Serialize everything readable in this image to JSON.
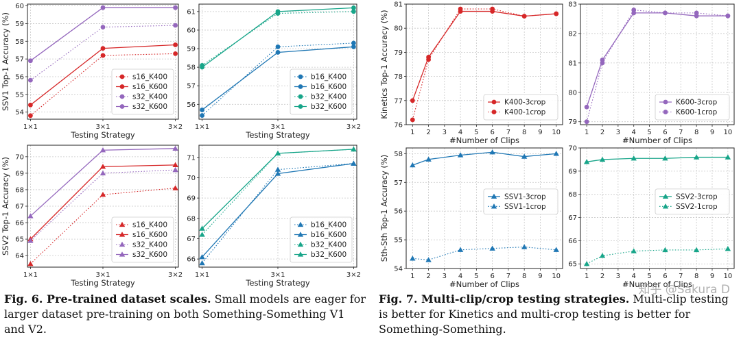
{
  "figure6": {
    "title": "Fig. 6. Pre-trained dataset scales.",
    "text": "Small models are eager for larger dataset pre-training on both Something-Something V1 and V2."
  },
  "figure7": {
    "title": "Fig. 7. Multi-clip/crop testing strategies.",
    "text": "Multi-clip testing is better for Kinetics and multi-crop testing is better for Something-Something."
  },
  "watermark": "知乎 @Sakura D",
  "chart_data": [
    {
      "id": "c1",
      "type": "line",
      "xlabel": "Testing Strategy",
      "ylabel": "SSV1 Top-1 Accuracy (%)",
      "categories": [
        "1×1",
        "3×1",
        "3×2"
      ],
      "ylim": [
        53.6,
        60.1
      ],
      "yticks": [
        54,
        55,
        56,
        57,
        58,
        59,
        60
      ],
      "ytick_decimals": 0,
      "legend": "bottom-right",
      "series": [
        {
          "name": "s16_K400",
          "values": [
            53.8,
            57.2,
            57.3
          ],
          "color": "#d62728",
          "style": "dotted",
          "marker": "circle"
        },
        {
          "name": "s16_K600",
          "values": [
            54.4,
            57.6,
            57.8
          ],
          "color": "#d62728",
          "style": "solid",
          "marker": "circle"
        },
        {
          "name": "s32_K400",
          "values": [
            55.8,
            58.8,
            58.9
          ],
          "color": "#9467bd",
          "style": "dotted",
          "marker": "circle"
        },
        {
          "name": "s32_K600",
          "values": [
            56.9,
            59.9,
            59.9
          ],
          "color": "#9467bd",
          "style": "solid",
          "marker": "circle"
        }
      ]
    },
    {
      "id": "c2",
      "type": "line",
      "xlabel": "Testing Strategy",
      "ylabel": "",
      "categories": [
        "1×1",
        "3×1",
        "3×2"
      ],
      "ylim": [
        55.2,
        61.4
      ],
      "yticks": [
        55,
        56,
        57,
        58,
        59,
        60,
        61
      ],
      "ytick_decimals": 0,
      "legend": "bottom-right",
      "series": [
        {
          "name": "b16_K400",
          "values": [
            55.4,
            59.1,
            59.3
          ],
          "color": "#1f77b4",
          "style": "dotted",
          "marker": "circle"
        },
        {
          "name": "b16_K600",
          "values": [
            55.7,
            58.8,
            59.1
          ],
          "color": "#1f77b4",
          "style": "solid",
          "marker": "circle"
        },
        {
          "name": "b32_K400",
          "values": [
            58.1,
            60.9,
            61.0
          ],
          "color": "#17a589",
          "style": "dotted",
          "marker": "circle"
        },
        {
          "name": "b32_K600",
          "values": [
            58.0,
            61.0,
            61.2
          ],
          "color": "#17a589",
          "style": "solid",
          "marker": "circle"
        }
      ]
    },
    {
      "id": "c3",
      "type": "line",
      "xlabel": "Testing Strategy",
      "ylabel": "SSV2 Top-1 Accuracy (%)",
      "categories": [
        "1×1",
        "3×1",
        "3×2"
      ],
      "ylim": [
        63.3,
        70.7
      ],
      "yticks": [
        64,
        65,
        66,
        67,
        68,
        69,
        70
      ],
      "ytick_decimals": 0,
      "legend": "bottom-right",
      "series": [
        {
          "name": "s16_K400",
          "values": [
            63.5,
            67.7,
            68.1
          ],
          "color": "#d62728",
          "style": "dotted",
          "marker": "triangle"
        },
        {
          "name": "s16_K600",
          "values": [
            65.0,
            69.4,
            69.5
          ],
          "color": "#d62728",
          "style": "solid",
          "marker": "triangle"
        },
        {
          "name": "s32_K400",
          "values": [
            64.9,
            69.0,
            69.2
          ],
          "color": "#9467bd",
          "style": "dotted",
          "marker": "triangle"
        },
        {
          "name": "s32_K600",
          "values": [
            66.4,
            70.4,
            70.5
          ],
          "color": "#9467bd",
          "style": "solid",
          "marker": "triangle"
        }
      ]
    },
    {
      "id": "c4",
      "type": "line",
      "xlabel": "Testing Strategy",
      "ylabel": "",
      "categories": [
        "1×1",
        "3×1",
        "3×2"
      ],
      "ylim": [
        65.6,
        71.6
      ],
      "yticks": [
        66,
        67,
        68,
        69,
        70,
        71
      ],
      "ytick_decimals": 0,
      "legend": "bottom-right",
      "series": [
        {
          "name": "b16_K400",
          "values": [
            65.8,
            70.4,
            70.7
          ],
          "color": "#1f77b4",
          "style": "dotted",
          "marker": "triangle"
        },
        {
          "name": "b16_K600",
          "values": [
            66.1,
            70.2,
            70.7
          ],
          "color": "#1f77b4",
          "style": "solid",
          "marker": "triangle"
        },
        {
          "name": "b32_K400",
          "values": [
            67.2,
            71.2,
            71.4
          ],
          "color": "#17a589",
          "style": "dotted",
          "marker": "triangle"
        },
        {
          "name": "b32_K600",
          "values": [
            67.5,
            71.2,
            71.4
          ],
          "color": "#17a589",
          "style": "solid",
          "marker": "triangle"
        }
      ]
    },
    {
      "id": "c5",
      "type": "line",
      "xlabel": "#Number of Clips",
      "ylabel": "Kinetics Top-1 Accuracy (%)",
      "x": [
        1,
        2,
        4,
        6,
        8,
        10
      ],
      "xticks": [
        1,
        2,
        3,
        4,
        5,
        6,
        7,
        8,
        9,
        10
      ],
      "xlim": [
        0.6,
        10.4
      ],
      "ylim": [
        76.0,
        81.0
      ],
      "yticks": [
        76,
        77,
        78,
        79,
        80,
        81
      ],
      "ytick_decimals": 0,
      "legend": "bottom-right",
      "series": [
        {
          "name": "K400-3crop",
          "values": [
            77.0,
            78.8,
            80.7,
            80.7,
            80.5,
            80.6
          ],
          "color": "#d62728",
          "style": "solid",
          "marker": "circle"
        },
        {
          "name": "K400-1crop",
          "values": [
            76.2,
            78.7,
            80.8,
            80.8,
            80.5,
            80.6
          ],
          "color": "#d62728",
          "style": "dotted",
          "marker": "circle"
        }
      ]
    },
    {
      "id": "c6",
      "type": "line",
      "xlabel": "#Number of Clips",
      "ylabel": "",
      "x": [
        1,
        2,
        4,
        6,
        8,
        10
      ],
      "xticks": [
        1,
        2,
        3,
        4,
        5,
        6,
        7,
        8,
        9,
        10
      ],
      "xlim": [
        0.6,
        10.4
      ],
      "ylim": [
        78.9,
        83.0
      ],
      "yticks": [
        79,
        80,
        81,
        82,
        83
      ],
      "ytick_decimals": 0,
      "legend": "bottom-right",
      "series": [
        {
          "name": "K600-3crop",
          "values": [
            79.5,
            81.1,
            82.7,
            82.7,
            82.6,
            82.6
          ],
          "color": "#9467bd",
          "style": "solid",
          "marker": "circle"
        },
        {
          "name": "K600-1crop",
          "values": [
            79.0,
            81.0,
            82.8,
            82.7,
            82.7,
            82.6
          ],
          "color": "#9467bd",
          "style": "dotted",
          "marker": "circle"
        }
      ]
    },
    {
      "id": "c7",
      "type": "line",
      "xlabel": "#Number of Clips",
      "ylabel": "Sth-Sth Top-1 Accuracy (%)",
      "x": [
        1,
        2,
        4,
        6,
        8,
        10
      ],
      "xticks": [
        1,
        2,
        3,
        4,
        5,
        6,
        7,
        8,
        9,
        10
      ],
      "xlim": [
        0.6,
        10.4
      ],
      "ylim": [
        54.0,
        58.2
      ],
      "yticks": [
        54,
        55,
        56,
        57,
        58
      ],
      "ytick_decimals": 0,
      "legend": "center-right",
      "series": [
        {
          "name": "SSV1-3crop",
          "values": [
            57.6,
            57.8,
            57.95,
            58.05,
            57.9,
            58.0
          ],
          "color": "#1f77b4",
          "style": "solid",
          "marker": "triangle"
        },
        {
          "name": "SSV1-1crop",
          "values": [
            54.35,
            54.3,
            54.65,
            54.7,
            54.75,
            54.65
          ],
          "color": "#1f77b4",
          "style": "dotted",
          "marker": "triangle"
        }
      ]
    },
    {
      "id": "c8",
      "type": "line",
      "xlabel": "#Number of Clips",
      "ylabel": "",
      "x": [
        1,
        2,
        4,
        6,
        8,
        10
      ],
      "xticks": [
        1,
        2,
        3,
        4,
        5,
        6,
        7,
        8,
        9,
        10
      ],
      "xlim": [
        0.6,
        10.4
      ],
      "ylim": [
        64.8,
        70.0
      ],
      "yticks": [
        65,
        66,
        67,
        68,
        69,
        70
      ],
      "ytick_decimals": 0,
      "legend": "center-right",
      "series": [
        {
          "name": "SSV2-3crop",
          "values": [
            69.4,
            69.5,
            69.55,
            69.55,
            69.6,
            69.6
          ],
          "color": "#17a589",
          "style": "solid",
          "marker": "triangle"
        },
        {
          "name": "SSV2-1crop",
          "values": [
            65.0,
            65.35,
            65.55,
            65.6,
            65.6,
            65.65
          ],
          "color": "#17a589",
          "style": "dotted",
          "marker": "triangle"
        }
      ]
    }
  ]
}
